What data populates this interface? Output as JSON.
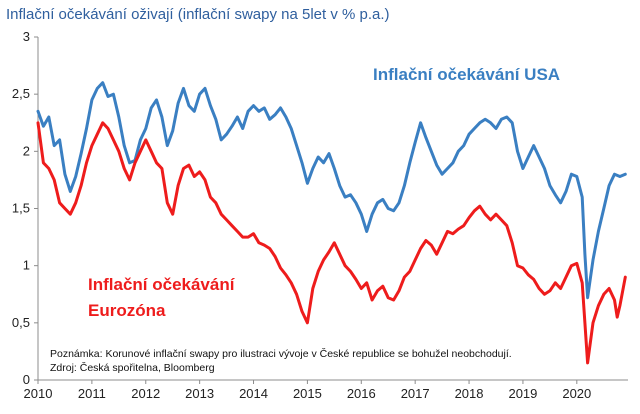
{
  "chart_data": {
    "type": "line",
    "title": "Inflační očekávání oživají (inflační swapy na 5let v % p.a.)",
    "xlabel": "",
    "ylabel": "",
    "xlim": [
      2010,
      2020.95
    ],
    "ylim": [
      0,
      3
    ],
    "x_ticks": [
      "2010",
      "2011",
      "2012",
      "2013",
      "2014",
      "2015",
      "2016",
      "2017",
      "2018",
      "2019",
      "2020"
    ],
    "y_ticks": [
      "0",
      "0,5",
      "1",
      "1,5",
      "2",
      "2,5",
      "3"
    ],
    "grid": false,
    "legend": "none",
    "series": [
      {
        "name": "Inflační očekávání USA",
        "color": "#3a7fc2",
        "points": [
          [
            2010.0,
            2.35
          ],
          [
            2010.1,
            2.22
          ],
          [
            2010.2,
            2.3
          ],
          [
            2010.3,
            2.05
          ],
          [
            2010.4,
            2.1
          ],
          [
            2010.5,
            1.8
          ],
          [
            2010.6,
            1.65
          ],
          [
            2010.7,
            1.78
          ],
          [
            2010.8,
            1.98
          ],
          [
            2010.9,
            2.2
          ],
          [
            2011.0,
            2.45
          ],
          [
            2011.1,
            2.55
          ],
          [
            2011.2,
            2.6
          ],
          [
            2011.3,
            2.48
          ],
          [
            2011.4,
            2.5
          ],
          [
            2011.5,
            2.3
          ],
          [
            2011.6,
            2.05
          ],
          [
            2011.7,
            1.9
          ],
          [
            2011.8,
            1.92
          ],
          [
            2011.9,
            2.1
          ],
          [
            2012.0,
            2.2
          ],
          [
            2012.1,
            2.38
          ],
          [
            2012.2,
            2.45
          ],
          [
            2012.3,
            2.3
          ],
          [
            2012.4,
            2.05
          ],
          [
            2012.5,
            2.18
          ],
          [
            2012.6,
            2.42
          ],
          [
            2012.7,
            2.55
          ],
          [
            2012.8,
            2.4
          ],
          [
            2012.9,
            2.35
          ],
          [
            2013.0,
            2.5
          ],
          [
            2013.1,
            2.55
          ],
          [
            2013.2,
            2.4
          ],
          [
            2013.3,
            2.28
          ],
          [
            2013.4,
            2.1
          ],
          [
            2013.5,
            2.15
          ],
          [
            2013.6,
            2.22
          ],
          [
            2013.7,
            2.3
          ],
          [
            2013.8,
            2.2
          ],
          [
            2013.9,
            2.35
          ],
          [
            2014.0,
            2.4
          ],
          [
            2014.1,
            2.35
          ],
          [
            2014.2,
            2.38
          ],
          [
            2014.3,
            2.28
          ],
          [
            2014.4,
            2.32
          ],
          [
            2014.5,
            2.38
          ],
          [
            2014.6,
            2.3
          ],
          [
            2014.7,
            2.2
          ],
          [
            2014.8,
            2.05
          ],
          [
            2014.9,
            1.9
          ],
          [
            2015.0,
            1.72
          ],
          [
            2015.1,
            1.85
          ],
          [
            2015.2,
            1.95
          ],
          [
            2015.3,
            1.9
          ],
          [
            2015.4,
            1.98
          ],
          [
            2015.5,
            1.85
          ],
          [
            2015.6,
            1.7
          ],
          [
            2015.7,
            1.6
          ],
          [
            2015.8,
            1.62
          ],
          [
            2015.9,
            1.55
          ],
          [
            2016.0,
            1.45
          ],
          [
            2016.1,
            1.3
          ],
          [
            2016.2,
            1.45
          ],
          [
            2016.3,
            1.55
          ],
          [
            2016.4,
            1.58
          ],
          [
            2016.5,
            1.5
          ],
          [
            2016.6,
            1.48
          ],
          [
            2016.7,
            1.55
          ],
          [
            2016.8,
            1.7
          ],
          [
            2016.9,
            1.9
          ],
          [
            2017.0,
            2.08
          ],
          [
            2017.1,
            2.25
          ],
          [
            2017.2,
            2.12
          ],
          [
            2017.3,
            2.0
          ],
          [
            2017.4,
            1.88
          ],
          [
            2017.5,
            1.8
          ],
          [
            2017.6,
            1.85
          ],
          [
            2017.7,
            1.9
          ],
          [
            2017.8,
            2.0
          ],
          [
            2017.9,
            2.05
          ],
          [
            2018.0,
            2.15
          ],
          [
            2018.1,
            2.2
          ],
          [
            2018.2,
            2.25
          ],
          [
            2018.3,
            2.28
          ],
          [
            2018.4,
            2.25
          ],
          [
            2018.5,
            2.2
          ],
          [
            2018.6,
            2.28
          ],
          [
            2018.7,
            2.3
          ],
          [
            2018.8,
            2.25
          ],
          [
            2018.9,
            2.0
          ],
          [
            2019.0,
            1.85
          ],
          [
            2019.1,
            1.95
          ],
          [
            2019.2,
            2.05
          ],
          [
            2019.3,
            1.95
          ],
          [
            2019.4,
            1.85
          ],
          [
            2019.5,
            1.7
          ],
          [
            2019.6,
            1.62
          ],
          [
            2019.7,
            1.55
          ],
          [
            2019.8,
            1.65
          ],
          [
            2019.9,
            1.8
          ],
          [
            2020.0,
            1.78
          ],
          [
            2020.1,
            1.6
          ],
          [
            2020.15,
            1.1
          ],
          [
            2020.2,
            0.72
          ],
          [
            2020.3,
            1.05
          ],
          [
            2020.4,
            1.3
          ],
          [
            2020.5,
            1.5
          ],
          [
            2020.6,
            1.7
          ],
          [
            2020.7,
            1.8
          ],
          [
            2020.8,
            1.78
          ],
          [
            2020.9,
            1.8
          ]
        ]
      },
      {
        "name": "Inflační očekávání Eurozóna",
        "color": "#ee1c1c",
        "points": [
          [
            2010.0,
            2.25
          ],
          [
            2010.1,
            1.9
          ],
          [
            2010.2,
            1.85
          ],
          [
            2010.3,
            1.75
          ],
          [
            2010.4,
            1.55
          ],
          [
            2010.5,
            1.5
          ],
          [
            2010.6,
            1.45
          ],
          [
            2010.7,
            1.55
          ],
          [
            2010.8,
            1.7
          ],
          [
            2010.9,
            1.9
          ],
          [
            2011.0,
            2.05
          ],
          [
            2011.1,
            2.15
          ],
          [
            2011.2,
            2.25
          ],
          [
            2011.3,
            2.2
          ],
          [
            2011.4,
            2.1
          ],
          [
            2011.5,
            2.0
          ],
          [
            2011.6,
            1.85
          ],
          [
            2011.7,
            1.75
          ],
          [
            2011.8,
            1.9
          ],
          [
            2011.9,
            2.0
          ],
          [
            2012.0,
            2.1
          ],
          [
            2012.1,
            2.0
          ],
          [
            2012.2,
            1.9
          ],
          [
            2012.3,
            1.85
          ],
          [
            2012.4,
            1.55
          ],
          [
            2012.5,
            1.45
          ],
          [
            2012.6,
            1.7
          ],
          [
            2012.7,
            1.85
          ],
          [
            2012.8,
            1.88
          ],
          [
            2012.9,
            1.78
          ],
          [
            2013.0,
            1.82
          ],
          [
            2013.1,
            1.75
          ],
          [
            2013.2,
            1.6
          ],
          [
            2013.3,
            1.55
          ],
          [
            2013.4,
            1.45
          ],
          [
            2013.5,
            1.4
          ],
          [
            2013.6,
            1.35
          ],
          [
            2013.7,
            1.3
          ],
          [
            2013.8,
            1.25
          ],
          [
            2013.9,
            1.25
          ],
          [
            2014.0,
            1.28
          ],
          [
            2014.1,
            1.2
          ],
          [
            2014.2,
            1.18
          ],
          [
            2014.3,
            1.15
          ],
          [
            2014.4,
            1.08
          ],
          [
            2014.5,
            0.98
          ],
          [
            2014.6,
            0.92
          ],
          [
            2014.7,
            0.85
          ],
          [
            2014.8,
            0.75
          ],
          [
            2014.9,
            0.6
          ],
          [
            2015.0,
            0.5
          ],
          [
            2015.1,
            0.8
          ],
          [
            2015.2,
            0.95
          ],
          [
            2015.3,
            1.05
          ],
          [
            2015.4,
            1.12
          ],
          [
            2015.5,
            1.2
          ],
          [
            2015.6,
            1.1
          ],
          [
            2015.7,
            1.0
          ],
          [
            2015.8,
            0.95
          ],
          [
            2015.9,
            0.88
          ],
          [
            2016.0,
            0.8
          ],
          [
            2016.1,
            0.85
          ],
          [
            2016.2,
            0.7
          ],
          [
            2016.3,
            0.78
          ],
          [
            2016.4,
            0.82
          ],
          [
            2016.5,
            0.72
          ],
          [
            2016.6,
            0.7
          ],
          [
            2016.7,
            0.78
          ],
          [
            2016.8,
            0.9
          ],
          [
            2016.9,
            0.95
          ],
          [
            2017.0,
            1.05
          ],
          [
            2017.1,
            1.15
          ],
          [
            2017.2,
            1.22
          ],
          [
            2017.3,
            1.18
          ],
          [
            2017.4,
            1.1
          ],
          [
            2017.5,
            1.2
          ],
          [
            2017.6,
            1.3
          ],
          [
            2017.7,
            1.28
          ],
          [
            2017.8,
            1.32
          ],
          [
            2017.9,
            1.35
          ],
          [
            2018.0,
            1.42
          ],
          [
            2018.1,
            1.48
          ],
          [
            2018.2,
            1.52
          ],
          [
            2018.3,
            1.45
          ],
          [
            2018.4,
            1.4
          ],
          [
            2018.5,
            1.45
          ],
          [
            2018.6,
            1.4
          ],
          [
            2018.7,
            1.35
          ],
          [
            2018.8,
            1.2
          ],
          [
            2018.9,
            1.0
          ],
          [
            2019.0,
            0.98
          ],
          [
            2019.1,
            0.92
          ],
          [
            2019.2,
            0.88
          ],
          [
            2019.3,
            0.8
          ],
          [
            2019.4,
            0.75
          ],
          [
            2019.5,
            0.78
          ],
          [
            2019.6,
            0.85
          ],
          [
            2019.7,
            0.8
          ],
          [
            2019.8,
            0.9
          ],
          [
            2019.9,
            1.0
          ],
          [
            2020.0,
            1.02
          ],
          [
            2020.1,
            0.85
          ],
          [
            2020.2,
            0.15
          ],
          [
            2020.3,
            0.5
          ],
          [
            2020.4,
            0.65
          ],
          [
            2020.5,
            0.75
          ],
          [
            2020.6,
            0.8
          ],
          [
            2020.7,
            0.7
          ],
          [
            2020.75,
            0.55
          ],
          [
            2020.8,
            0.65
          ],
          [
            2020.9,
            0.9
          ]
        ]
      }
    ],
    "annotations": {
      "label_usa": "Inflační očekávání USA",
      "label_ez_line1": "Inflační očekávání",
      "label_ez_line2": "Eurozóna",
      "note_line1": "Poznámka: Korunové inflační swapy pro ilustraci vývoje v České republice se bohužel neobchodují.",
      "note_line2": "Zdroj: Česká spořitelna, Bloomberg"
    }
  }
}
